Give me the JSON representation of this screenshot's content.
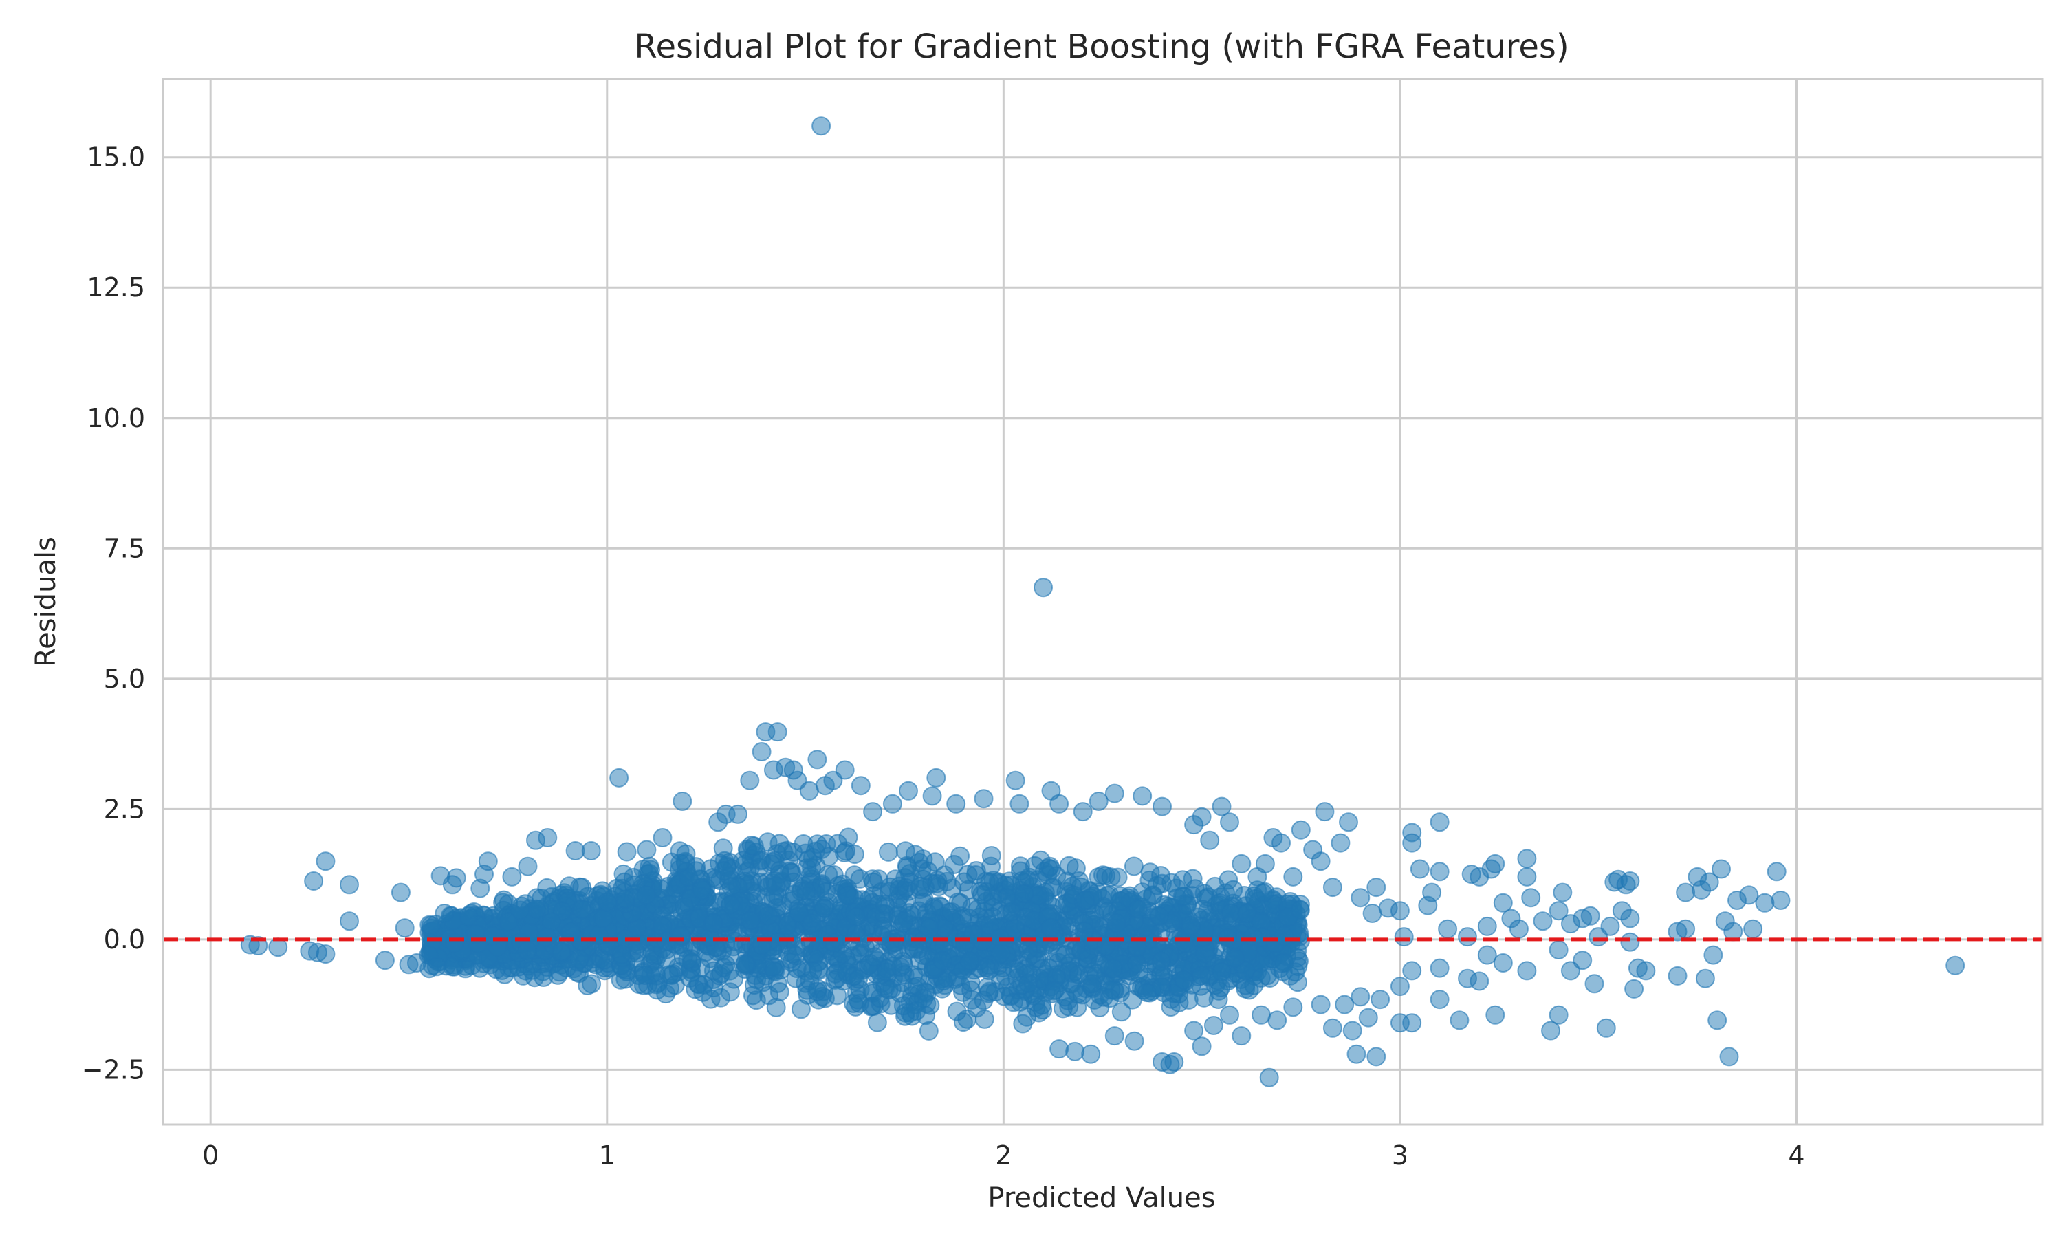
{
  "chart_data": {
    "type": "scatter",
    "title": "Residual Plot for Gradient Boosting (with FGRA Features)",
    "xlabel": "Predicted Values",
    "ylabel": "Residuals",
    "xlim": [
      -0.12,
      4.62
    ],
    "ylim": [
      -3.55,
      16.5
    ],
    "x_ticks": [
      0,
      1,
      2,
      3,
      4
    ],
    "x_tick_labels": [
      "0",
      "1",
      "2",
      "3",
      "4"
    ],
    "y_ticks": [
      -2.5,
      0.0,
      2.5,
      5.0,
      7.5,
      10.0,
      12.5,
      15.0
    ],
    "y_tick_labels": [
      "−2.5",
      "0.0",
      "2.5",
      "5.0",
      "7.5",
      "10.0",
      "12.5",
      "15.0"
    ],
    "grid": true,
    "legend": "none",
    "point_color": "#1f77b4",
    "point_alpha": 0.5,
    "reference_line": {
      "y": 0.0,
      "color": "#e41a1c",
      "style": "dashed"
    },
    "dense_band": {
      "description_x_range": [
        0.55,
        2.75
      ],
      "upper_x": [
        0.55,
        1.0,
        1.4,
        1.8,
        2.2,
        2.6,
        2.75
      ],
      "upper_y": [
        0.5,
        1.3,
        2.3,
        1.8,
        1.6,
        1.2,
        0.9
      ],
      "lower_x": [
        0.55,
        1.0,
        1.4,
        1.8,
        2.2,
        2.6,
        2.75
      ],
      "lower_y": [
        -0.6,
        -1.0,
        -1.5,
        -1.8,
        -1.6,
        -1.2,
        -0.9
      ]
    },
    "points": [
      [
        0.1,
        -0.1
      ],
      [
        0.12,
        -0.12
      ],
      [
        0.17,
        -0.15
      ],
      [
        0.25,
        -0.22
      ],
      [
        0.27,
        -0.25
      ],
      [
        0.29,
        -0.28
      ],
      [
        0.26,
        1.12
      ],
      [
        0.29,
        1.5
      ],
      [
        0.35,
        1.05
      ],
      [
        0.35,
        0.35
      ],
      [
        0.44,
        -0.4
      ],
      [
        0.48,
        0.9
      ],
      [
        0.49,
        0.22
      ],
      [
        0.5,
        -0.48
      ],
      [
        0.52,
        -0.45
      ],
      [
        0.55,
        -0.3
      ],
      [
        0.57,
        -0.52
      ],
      [
        0.58,
        1.22
      ],
      [
        0.59,
        0.5
      ],
      [
        0.61,
        1.05
      ],
      [
        0.62,
        1.18
      ],
      [
        0.65,
        0.45
      ],
      [
        0.68,
        0.98
      ],
      [
        0.69,
        1.25
      ],
      [
        0.7,
        1.5
      ],
      [
        0.76,
        1.2
      ],
      [
        0.8,
        1.4
      ],
      [
        0.82,
        1.9
      ],
      [
        0.85,
        1.95
      ],
      [
        0.92,
        1.7
      ],
      [
        0.96,
        1.7
      ],
      [
        1.03,
        3.1
      ],
      [
        1.05,
        1.68
      ],
      [
        1.1,
        1.72
      ],
      [
        1.14,
        1.95
      ],
      [
        1.19,
        2.65
      ],
      [
        1.28,
        2.25
      ],
      [
        1.3,
        2.4
      ],
      [
        1.33,
        2.4
      ],
      [
        1.36,
        3.05
      ],
      [
        1.39,
        3.6
      ],
      [
        1.4,
        3.98
      ],
      [
        1.42,
        3.25
      ],
      [
        1.43,
        3.98
      ],
      [
        1.45,
        3.3
      ],
      [
        1.47,
        3.25
      ],
      [
        1.48,
        3.05
      ],
      [
        1.51,
        2.85
      ],
      [
        1.53,
        3.45
      ],
      [
        1.55,
        2.95
      ],
      [
        1.57,
        3.05
      ],
      [
        1.6,
        3.25
      ],
      [
        1.64,
        2.95
      ],
      [
        1.67,
        2.45
      ],
      [
        1.72,
        2.6
      ],
      [
        1.76,
        2.85
      ],
      [
        1.82,
        2.75
      ],
      [
        1.83,
        3.1
      ],
      [
        1.88,
        2.6
      ],
      [
        1.95,
        2.7
      ],
      [
        2.03,
        3.05
      ],
      [
        2.04,
        2.6
      ],
      [
        2.12,
        2.85
      ],
      [
        2.14,
        2.6
      ],
      [
        2.2,
        2.45
      ],
      [
        2.24,
        2.65
      ],
      [
        2.28,
        2.8
      ],
      [
        2.35,
        2.75
      ],
      [
        2.4,
        2.55
      ],
      [
        2.48,
        2.2
      ],
      [
        2.5,
        2.35
      ],
      [
        2.52,
        1.9
      ],
      [
        2.55,
        2.55
      ],
      [
        2.57,
        2.25
      ],
      [
        2.6,
        1.45
      ],
      [
        2.64,
        1.2
      ],
      [
        2.66,
        1.45
      ],
      [
        2.68,
        1.95
      ],
      [
        2.7,
        1.85
      ],
      [
        2.73,
        1.2
      ],
      [
        2.75,
        2.1
      ],
      [
        2.78,
        1.72
      ],
      [
        2.8,
        1.5
      ],
      [
        2.81,
        2.45
      ],
      [
        2.83,
        1.0
      ],
      [
        2.85,
        1.85
      ],
      [
        2.87,
        2.25
      ],
      [
        2.9,
        0.8
      ],
      [
        2.93,
        0.5
      ],
      [
        2.94,
        1.0
      ],
      [
        2.97,
        0.6
      ],
      [
        3.0,
        0.55
      ],
      [
        3.01,
        0.05
      ],
      [
        3.03,
        2.05
      ],
      [
        3.03,
        1.85
      ],
      [
        3.05,
        1.35
      ],
      [
        3.07,
        0.65
      ],
      [
        3.08,
        0.9
      ],
      [
        3.1,
        2.25
      ],
      [
        3.1,
        1.3
      ],
      [
        3.12,
        0.2
      ],
      [
        3.17,
        0.05
      ],
      [
        3.18,
        1.25
      ],
      [
        3.2,
        1.2
      ],
      [
        3.22,
        0.25
      ],
      [
        3.23,
        1.35
      ],
      [
        3.24,
        1.45
      ],
      [
        3.26,
        0.7
      ],
      [
        3.28,
        0.4
      ],
      [
        3.3,
        0.2
      ],
      [
        3.32,
        1.55
      ],
      [
        3.32,
        1.2
      ],
      [
        3.33,
        0.8
      ],
      [
        3.36,
        0.35
      ],
      [
        3.4,
        0.55
      ],
      [
        3.41,
        0.9
      ],
      [
        3.43,
        0.3
      ],
      [
        3.46,
        0.4
      ],
      [
        3.48,
        0.45
      ],
      [
        3.5,
        0.05
      ],
      [
        3.53,
        0.25
      ],
      [
        3.54,
        1.1
      ],
      [
        3.55,
        1.15
      ],
      [
        3.57,
        1.05
      ],
      [
        3.58,
        1.12
      ],
      [
        3.56,
        0.55
      ],
      [
        3.58,
        0.4
      ],
      [
        3.7,
        0.15
      ],
      [
        3.72,
        0.2
      ],
      [
        3.72,
        0.9
      ],
      [
        3.75,
        1.2
      ],
      [
        3.76,
        0.95
      ],
      [
        3.78,
        1.1
      ],
      [
        3.81,
        1.35
      ],
      [
        3.82,
        0.35
      ],
      [
        3.84,
        0.15
      ],
      [
        3.85,
        0.75
      ],
      [
        3.88,
        0.85
      ],
      [
        3.89,
        0.2
      ],
      [
        3.92,
        0.7
      ],
      [
        3.95,
        1.3
      ],
      [
        3.96,
        0.75
      ],
      [
        2.43,
        -2.35
      ],
      [
        2.42,
        -2.4
      ],
      [
        2.4,
        -2.35
      ],
      [
        2.33,
        -1.95
      ],
      [
        2.28,
        -1.85
      ],
      [
        2.22,
        -2.2
      ],
      [
        2.18,
        -2.15
      ],
      [
        2.14,
        -2.1
      ],
      [
        2.48,
        -1.75
      ],
      [
        2.5,
        -2.05
      ],
      [
        2.53,
        -1.65
      ],
      [
        2.57,
        -1.45
      ],
      [
        2.6,
        -1.85
      ],
      [
        2.65,
        -1.45
      ],
      [
        2.67,
        -2.65
      ],
      [
        2.69,
        -1.55
      ],
      [
        2.73,
        -1.3
      ],
      [
        2.8,
        -1.25
      ],
      [
        2.83,
        -1.7
      ],
      [
        2.86,
        -1.25
      ],
      [
        2.88,
        -1.75
      ],
      [
        2.89,
        -2.2
      ],
      [
        2.9,
        -1.1
      ],
      [
        2.92,
        -1.5
      ],
      [
        2.94,
        -2.25
      ],
      [
        2.95,
        -1.15
      ],
      [
        3.0,
        -0.9
      ],
      [
        3.0,
        -1.6
      ],
      [
        3.03,
        -1.6
      ],
      [
        3.03,
        -0.6
      ],
      [
        3.1,
        -1.15
      ],
      [
        3.1,
        -0.55
      ],
      [
        3.15,
        -1.55
      ],
      [
        3.17,
        -0.75
      ],
      [
        3.2,
        -0.8
      ],
      [
        3.22,
        -0.3
      ],
      [
        3.24,
        -1.45
      ],
      [
        3.26,
        -0.45
      ],
      [
        3.32,
        -0.6
      ],
      [
        3.38,
        -1.75
      ],
      [
        3.4,
        -1.45
      ],
      [
        3.4,
        -0.2
      ],
      [
        3.43,
        -0.6
      ],
      [
        3.46,
        -0.4
      ],
      [
        3.49,
        -0.85
      ],
      [
        3.52,
        -1.7
      ],
      [
        3.58,
        -0.05
      ],
      [
        3.6,
        -0.55
      ],
      [
        3.62,
        -0.6
      ],
      [
        3.59,
        -0.95
      ],
      [
        3.7,
        -0.7
      ],
      [
        3.77,
        -0.75
      ],
      [
        3.79,
        -0.3
      ],
      [
        3.8,
        -1.55
      ],
      [
        3.83,
        -2.25
      ],
      [
        4.4,
        -0.5
      ],
      [
        1.54,
        15.6
      ],
      [
        2.1,
        6.75
      ]
    ]
  }
}
